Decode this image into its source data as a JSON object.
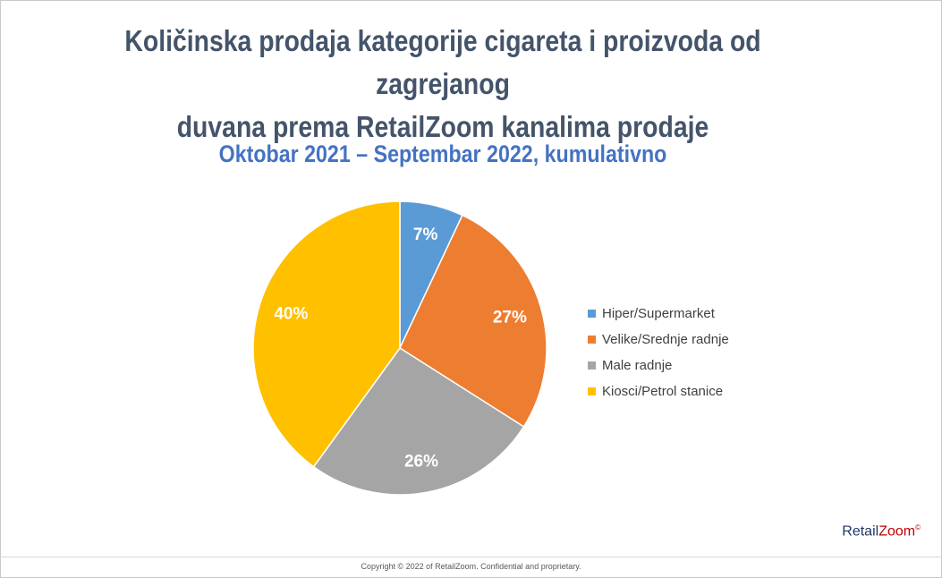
{
  "title_line1": "Količinska prodaja kategorije cigareta i proizvoda od zagrejanog",
  "title_line2": "duvana prema RetailZoom kanalima prodaje",
  "subtitle": "Oktobar 2021 – Septembar 2022, kumulativno",
  "chart_data": {
    "type": "pie",
    "categories": [
      "Hiper/Supermarket",
      "Velike/Srednje radnje",
      "Male radnje",
      "Kiosci/Petrol stanice"
    ],
    "values": [
      7,
      27,
      26,
      40
    ],
    "labels": [
      "7%",
      "27%",
      "26%",
      "40%"
    ],
    "colors": [
      "#5b9bd5",
      "#ed7d31",
      "#a5a5a5",
      "#ffc000"
    ],
    "legend_position": "right"
  },
  "legend": [
    {
      "label": "Hiper/Supermarket",
      "color": "#5b9bd5"
    },
    {
      "label": "Velike/Srednje radnje",
      "color": "#ed7d31"
    },
    {
      "label": "Male radnje",
      "color": "#a5a5a5"
    },
    {
      "label": "Kiosci/Petrol stanice",
      "color": "#ffc000"
    }
  ],
  "brand": {
    "part1": "Retail",
    "part2": "Zoom",
    "mark": "©"
  },
  "footer": "Copyright © 2022 of RetailZoom. Confidential and proprietary."
}
